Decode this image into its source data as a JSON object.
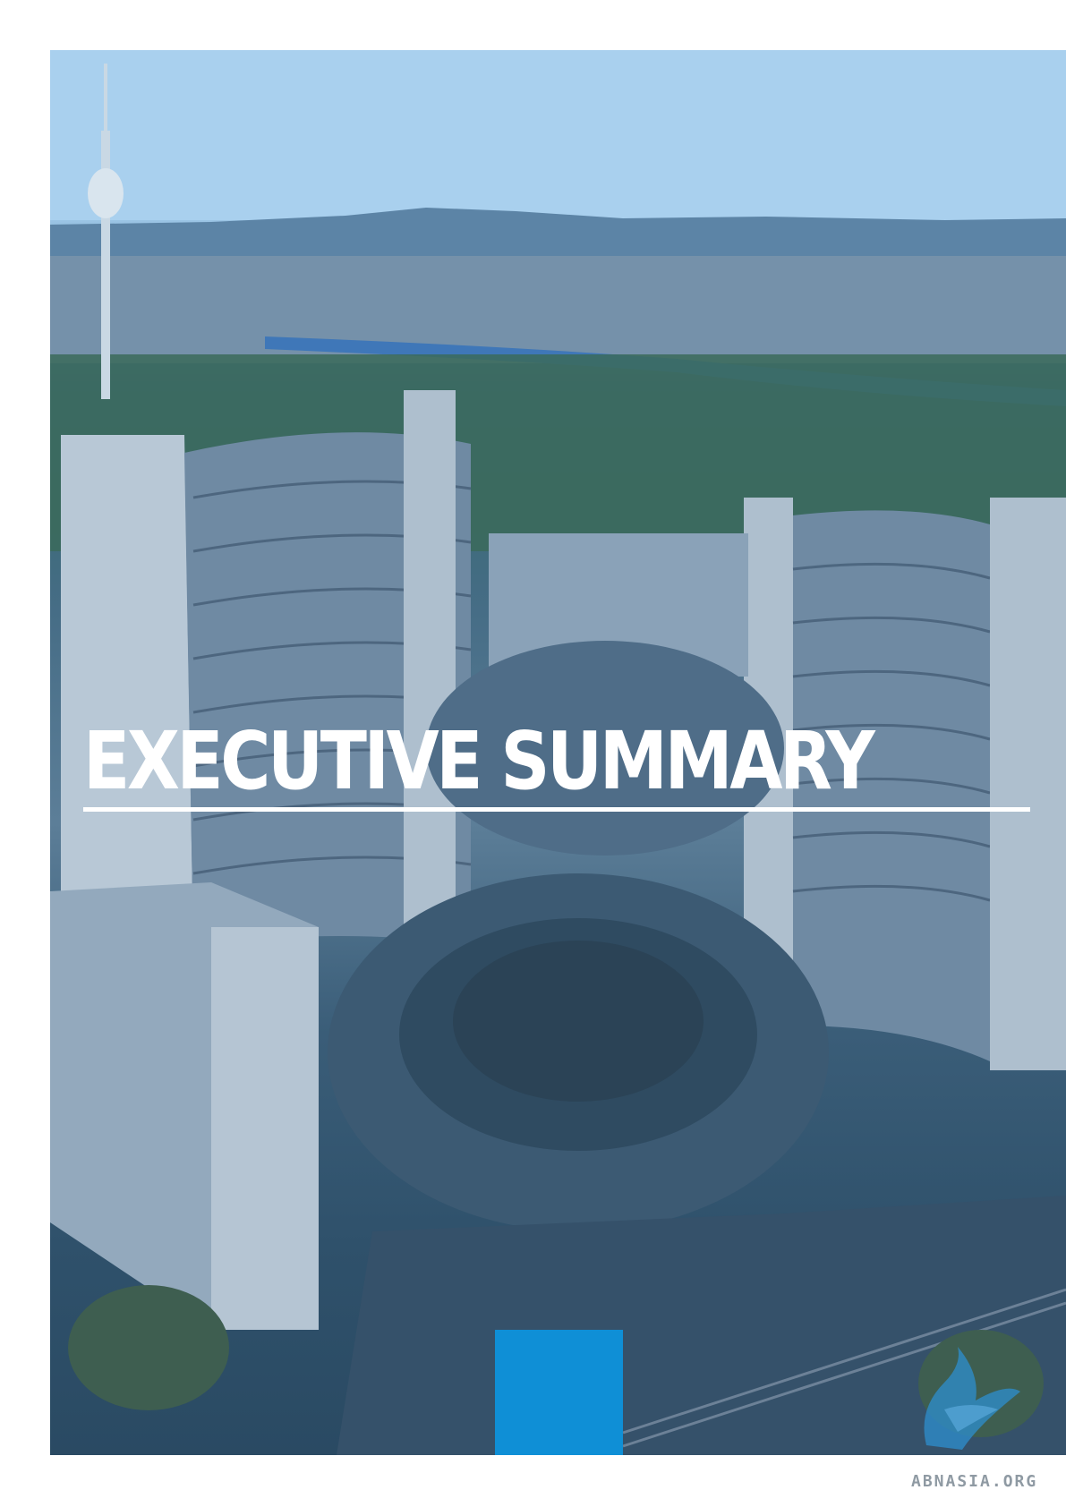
{
  "page": {
    "title": "EXECUTIVE SUMMARY",
    "background_tint": "#3a6a8c",
    "accent_color": "#0f8fd6"
  },
  "photo": {
    "subject_icon": "aerial-photo"
  },
  "watermark": {
    "text": "ABNASIA.ORG",
    "logo_icon": "abnasia-logo-icon"
  }
}
